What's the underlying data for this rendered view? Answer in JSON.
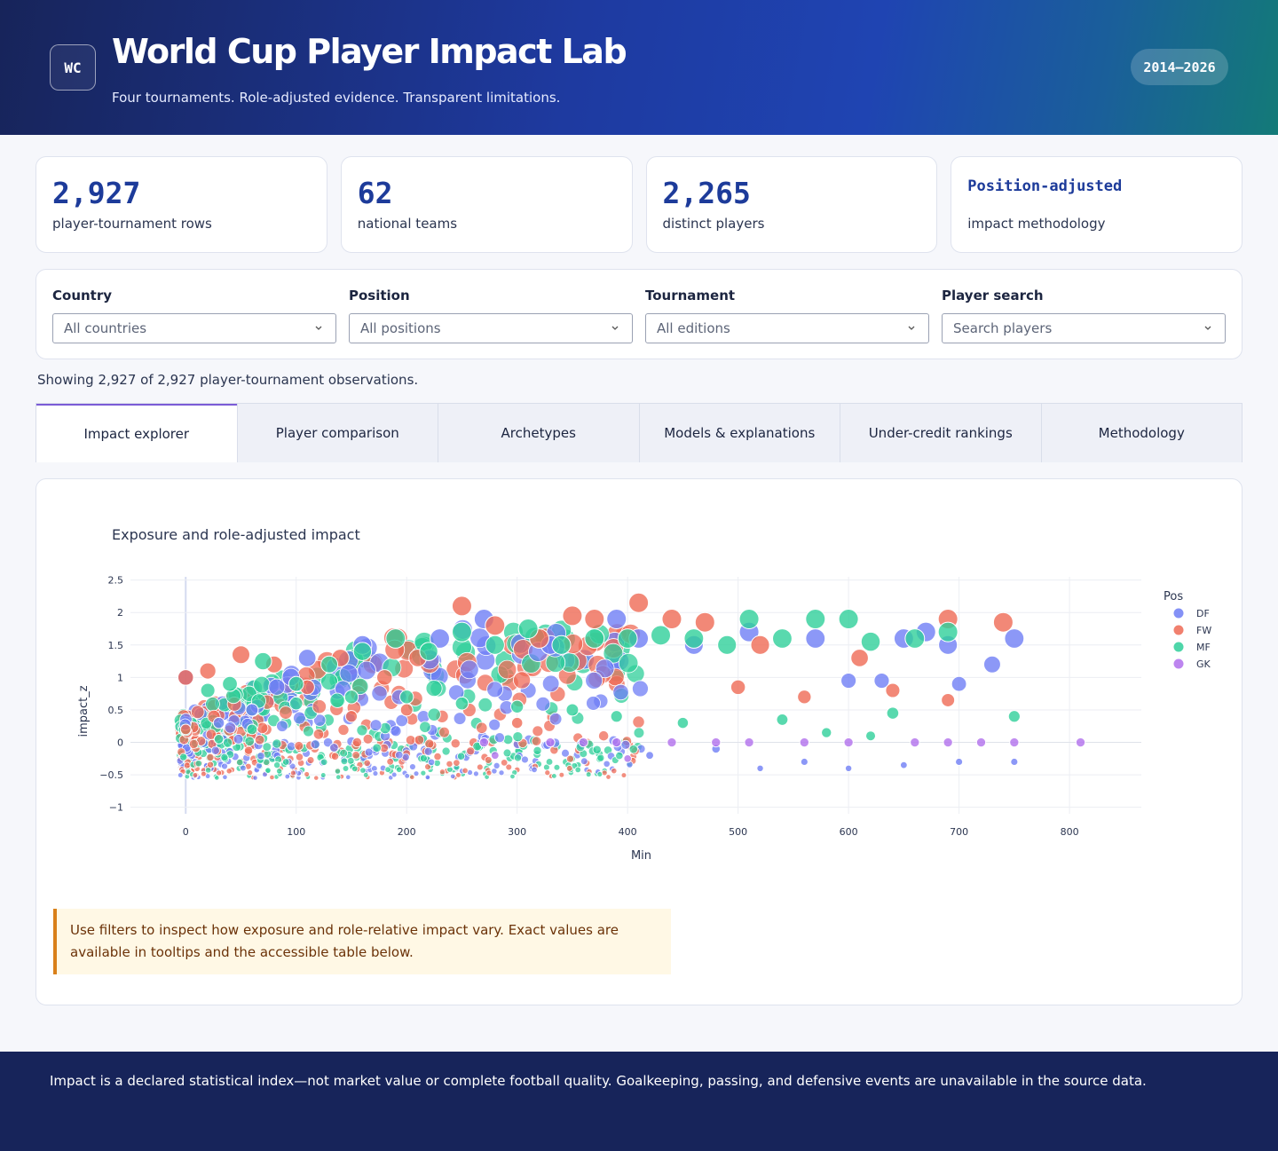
{
  "header": {
    "logo_text": "WC",
    "title": "World Cup Player Impact Lab",
    "subtitle": "Four tournaments. Role-adjusted evidence. Transparent limitations.",
    "years_badge": "2014–2026"
  },
  "kpis": [
    {
      "value": "2,927",
      "label": "player-tournament rows"
    },
    {
      "value": "62",
      "label": "national teams"
    },
    {
      "value": "2,265",
      "label": "distinct players"
    },
    {
      "value": "Position-adjusted",
      "label": "impact methodology"
    }
  ],
  "filters": {
    "country": {
      "label": "Country",
      "value": "All countries"
    },
    "position": {
      "label": "Position",
      "value": "All positions"
    },
    "tournament": {
      "label": "Tournament",
      "value": "All editions"
    },
    "player": {
      "label": "Player search",
      "value": "Search players"
    }
  },
  "showing_text": "Showing 2,927 of 2,927 player-tournament observations.",
  "tabs": [
    {
      "label": "Impact explorer",
      "active": true
    },
    {
      "label": "Player comparison",
      "active": false
    },
    {
      "label": "Archetypes",
      "active": false
    },
    {
      "label": "Models & explanations",
      "active": false
    },
    {
      "label": "Under-credit rankings",
      "active": false
    },
    {
      "label": "Methodology",
      "active": false
    }
  ],
  "chart_data": {
    "type": "scatter",
    "title": "Exposure and role-adjusted impact",
    "xlabel": "Min",
    "ylabel": "impact_z",
    "xlim": [
      -50,
      865
    ],
    "ylim": [
      -1.1,
      2.55
    ],
    "x_ticks": [
      0,
      100,
      200,
      300,
      400,
      500,
      600,
      700,
      800
    ],
    "y_ticks": [
      2.5,
      2,
      1.5,
      1,
      0.5,
      0,
      -0.5,
      -1
    ],
    "y_tick_labels": [
      "2.5",
      "2",
      "1.5",
      "1",
      "0.5",
      "0",
      "−0.5",
      "−1"
    ],
    "grid": true,
    "legend_title": "Pos",
    "legend_position": "top-right",
    "marker_size_encodes": "impact",
    "series": [
      {
        "name": "DF",
        "color": "#6f7ef5",
        "points": [
          [
            0,
            1.0
          ],
          [
            30,
            0.3
          ],
          [
            60,
            0.5
          ],
          [
            110,
            1.3
          ],
          [
            160,
            1.5
          ],
          [
            230,
            1.6
          ],
          [
            270,
            1.9
          ],
          [
            330,
            1.5
          ],
          [
            390,
            1.9
          ],
          [
            410,
            1.6
          ],
          [
            460,
            1.5
          ],
          [
            510,
            1.7
          ],
          [
            570,
            1.6
          ],
          [
            600,
            0.95
          ],
          [
            630,
            0.95
          ],
          [
            650,
            1.6
          ],
          [
            670,
            1.7
          ],
          [
            690,
            1.5
          ],
          [
            700,
            0.9
          ],
          [
            730,
            1.2
          ],
          [
            750,
            1.6
          ],
          [
            420,
            -0.2
          ],
          [
            480,
            -0.1
          ],
          [
            560,
            -0.3
          ],
          [
            650,
            -0.35
          ],
          [
            700,
            -0.3
          ],
          [
            750,
            -0.3
          ],
          [
            520,
            -0.4
          ],
          [
            600,
            -0.4
          ]
        ]
      },
      {
        "name": "FW",
        "color": "#ef6a55",
        "points": [
          [
            0,
            1.0
          ],
          [
            0,
            0.2
          ],
          [
            20,
            1.1
          ],
          [
            50,
            1.35
          ],
          [
            80,
            1.2
          ],
          [
            110,
            0.85
          ],
          [
            140,
            1.3
          ],
          [
            180,
            1.0
          ],
          [
            210,
            1.3
          ],
          [
            250,
            2.1
          ],
          [
            280,
            1.8
          ],
          [
            320,
            1.6
          ],
          [
            350,
            1.95
          ],
          [
            370,
            1.9
          ],
          [
            410,
            2.15
          ],
          [
            440,
            1.9
          ],
          [
            470,
            1.85
          ],
          [
            500,
            0.85
          ],
          [
            520,
            1.5
          ],
          [
            560,
            0.7
          ],
          [
            610,
            1.3
          ],
          [
            640,
            0.8
          ],
          [
            690,
            1.9
          ],
          [
            740,
            1.85
          ],
          [
            690,
            0.65
          ],
          [
            300,
            0.3
          ],
          [
            200,
            0.5
          ],
          [
            150,
            0.4
          ]
        ]
      },
      {
        "name": "MF",
        "color": "#2fcf9a",
        "points": [
          [
            20,
            0.8
          ],
          [
            40,
            0.9
          ],
          [
            70,
            1.25
          ],
          [
            100,
            0.9
          ],
          [
            130,
            1.2
          ],
          [
            160,
            1.4
          ],
          [
            190,
            1.6
          ],
          [
            220,
            1.4
          ],
          [
            250,
            1.7
          ],
          [
            280,
            1.5
          ],
          [
            310,
            1.75
          ],
          [
            340,
            1.5
          ],
          [
            370,
            1.6
          ],
          [
            400,
            1.6
          ],
          [
            430,
            1.65
          ],
          [
            460,
            1.6
          ],
          [
            490,
            1.5
          ],
          [
            510,
            1.9
          ],
          [
            540,
            1.6
          ],
          [
            570,
            1.9
          ],
          [
            600,
            1.9
          ],
          [
            620,
            1.55
          ],
          [
            660,
            1.6
          ],
          [
            690,
            1.7
          ],
          [
            750,
            0.4
          ],
          [
            640,
            0.45
          ],
          [
            540,
            0.35
          ],
          [
            450,
            0.3
          ],
          [
            390,
            0.4
          ],
          [
            350,
            0.5
          ],
          [
            300,
            0.55
          ],
          [
            250,
            0.6
          ],
          [
            200,
            0.7
          ],
          [
            150,
            0.7
          ],
          [
            100,
            0.6
          ],
          [
            60,
            0.2
          ],
          [
            30,
            0.05
          ],
          [
            580,
            0.15
          ],
          [
            620,
            0.1
          ]
        ]
      },
      {
        "name": "GK",
        "color": "#b170ec",
        "points": [
          [
            270,
            0.0
          ],
          [
            330,
            0.0
          ],
          [
            360,
            0.0
          ],
          [
            390,
            0.0
          ],
          [
            440,
            0.0
          ],
          [
            480,
            0.0
          ],
          [
            510,
            0.0
          ],
          [
            560,
            0.0
          ],
          [
            600,
            0.0
          ],
          [
            660,
            0.0
          ],
          [
            690,
            0.0
          ],
          [
            720,
            0.0
          ],
          [
            750,
            0.0
          ],
          [
            810,
            0.0
          ],
          [
            280,
            -0.2
          ],
          [
            400,
            -0.25
          ]
        ]
      }
    ]
  },
  "note": "Use filters to inspect how exposure and role-relative impact vary. Exact values are available in tooltips and the accessible table below.",
  "footer": "Impact is a declared statistical index—not market value or complete football quality. Goalkeeping, passing, and defensive events are unavailable in the source data."
}
